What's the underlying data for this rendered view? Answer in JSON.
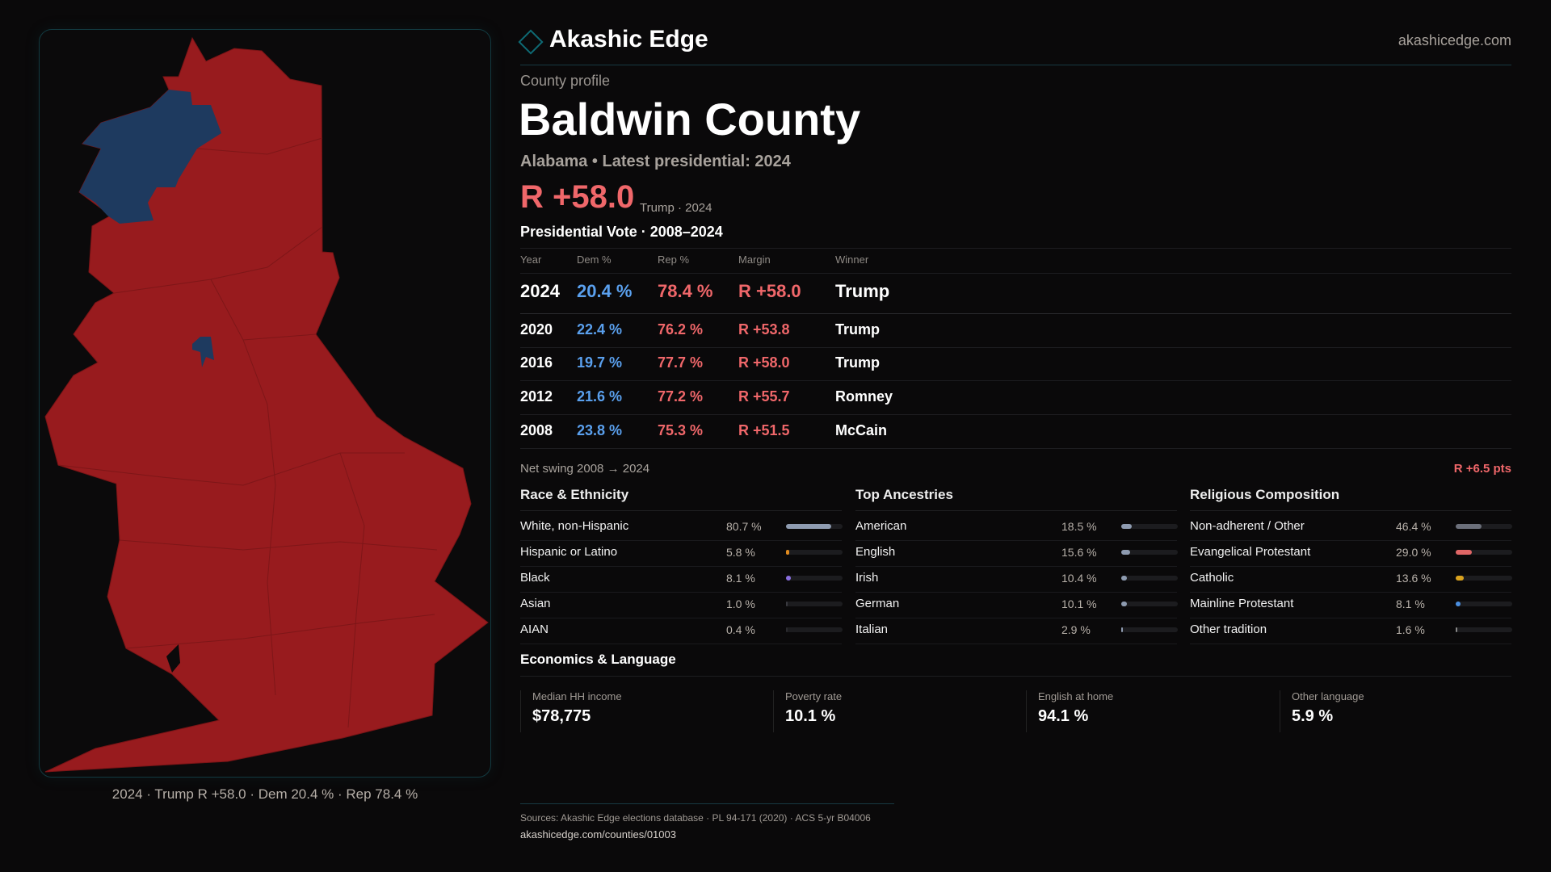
{
  "brand": {
    "name": "Akashic Edge",
    "site": "akashicedge.com"
  },
  "profile": {
    "kicker": "County profile",
    "title": "Baldwin County",
    "subtitle": "Alabama • Latest presidential: 2024",
    "margin": "R +58.0",
    "margin_note": "Trump · 2024"
  },
  "map": {
    "caption": "2024 · Trump R +58.0 · Dem 20.4 % · Rep 78.4 %",
    "colors": {
      "rep": "#981b1e",
      "dem": "#1e3a5f"
    }
  },
  "votes": {
    "title": "Presidential Vote · 2008–2024",
    "headers": [
      "Year",
      "Dem %",
      "Rep %",
      "Margin",
      "Winner"
    ],
    "rows": [
      {
        "year": "2024",
        "dem": "20.4 %",
        "rep": "78.4 %",
        "margin": "R +58.0",
        "winner": "Trump"
      },
      {
        "year": "2020",
        "dem": "22.4 %",
        "rep": "76.2 %",
        "margin": "R +53.8",
        "winner": "Trump"
      },
      {
        "year": "2016",
        "dem": "19.7 %",
        "rep": "77.7 %",
        "margin": "R +58.0",
        "winner": "Trump"
      },
      {
        "year": "2012",
        "dem": "21.6 %",
        "rep": "77.2 %",
        "margin": "R +55.7",
        "winner": "Romney"
      },
      {
        "year": "2008",
        "dem": "23.8 %",
        "rep": "75.3 %",
        "margin": "R +51.5",
        "winner": "McCain"
      }
    ],
    "swing_label": "Net swing 2008 → 2024",
    "swing_value": "R +6.5 pts"
  },
  "sections": [
    {
      "title": "Race & Ethnicity",
      "items": [
        {
          "label": "White, non-Hispanic",
          "value": "80.7 %",
          "pct": 80.7,
          "color": "#8e9bb0"
        },
        {
          "label": "Hispanic or Latino",
          "value": "5.8 %",
          "pct": 5.8,
          "color": "#e08a1e"
        },
        {
          "label": "Black",
          "value": "8.1 %",
          "pct": 8.1,
          "color": "#8a6ee0"
        },
        {
          "label": "Asian",
          "value": "1.0 %",
          "pct": 1.0,
          "color": "#3a3a40"
        },
        {
          "label": "AIAN",
          "value": "0.4 %",
          "pct": 0.4,
          "color": "#2a2a2e"
        }
      ]
    },
    {
      "title": "Top Ancestries",
      "items": [
        {
          "label": "American",
          "value": "18.5 %",
          "pct": 18.5,
          "color": "#8e9bb0"
        },
        {
          "label": "English",
          "value": "15.6 %",
          "pct": 15.6,
          "color": "#8e9bb0"
        },
        {
          "label": "Irish",
          "value": "10.4 %",
          "pct": 10.4,
          "color": "#8e9bb0"
        },
        {
          "label": "German",
          "value": "10.1 %",
          "pct": 10.1,
          "color": "#8e9bb0"
        },
        {
          "label": "Italian",
          "value": "2.9 %",
          "pct": 2.9,
          "color": "#8e9bb0"
        }
      ]
    },
    {
      "title": "Religious Composition",
      "items": [
        {
          "label": "Non-adherent / Other",
          "value": "46.4 %",
          "pct": 46.4,
          "color": "#6b6f7a"
        },
        {
          "label": "Evangelical Protestant",
          "value": "29.0 %",
          "pct": 29.0,
          "color": "#e06666"
        },
        {
          "label": "Catholic",
          "value": "13.6 %",
          "pct": 13.6,
          "color": "#d9a21e"
        },
        {
          "label": "Mainline Protestant",
          "value": "8.1 %",
          "pct": 8.1,
          "color": "#4a8ee0"
        },
        {
          "label": "Other tradition",
          "value": "1.6 %",
          "pct": 1.6,
          "color": "#888888"
        }
      ]
    }
  ],
  "economics": {
    "title": "Economics & Language",
    "stats": [
      {
        "label": "Median HH income",
        "value": "$78,775"
      },
      {
        "label": "Poverty rate",
        "value": "10.1 %"
      },
      {
        "label": "English at home",
        "value": "94.1 %"
      },
      {
        "label": "Other language",
        "value": "5.9 %"
      }
    ]
  },
  "footer": {
    "sources": "Sources: Akashic Edge elections database · PL 94-171 (2020) · ACS 5-yr B04006",
    "url": "akashicedge.com/counties/01003"
  }
}
